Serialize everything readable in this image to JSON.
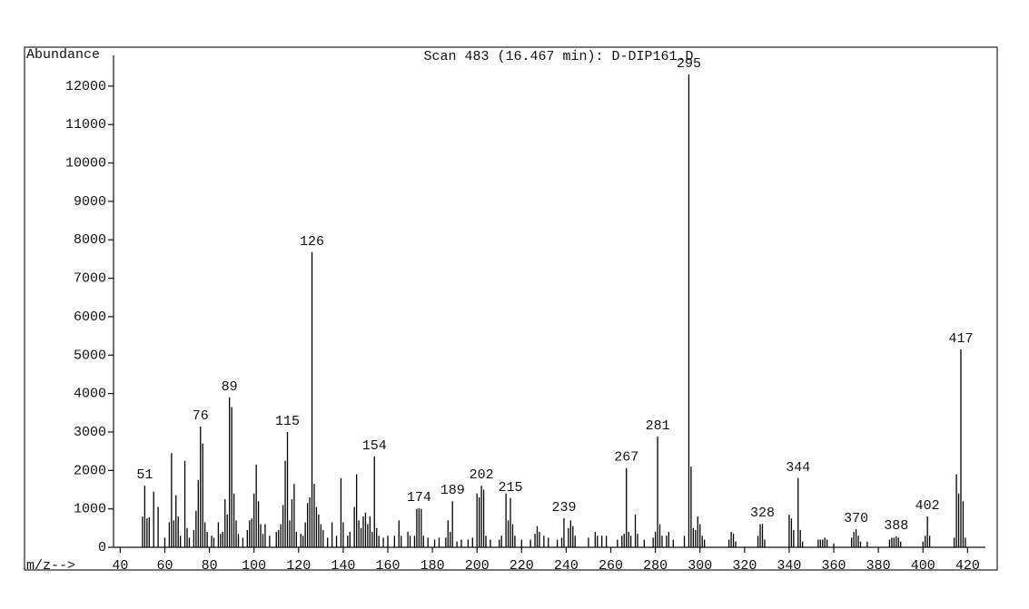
{
  "chart_data": {
    "type": "bar",
    "title": "Scan 483 (16.467 min): D-DIP161.D",
    "y_label": "Abundance",
    "x_label": "m/z-->",
    "color": "#000000",
    "xlim": [
      37,
      428
    ],
    "ylim": [
      0,
      12800
    ],
    "xticks": [
      40,
      60,
      80,
      100,
      120,
      140,
      160,
      180,
      200,
      220,
      240,
      260,
      280,
      300,
      320,
      340,
      360,
      380,
      400,
      420
    ],
    "yticks": [
      0,
      1000,
      2000,
      3000,
      4000,
      5000,
      6000,
      7000,
      8000,
      9000,
      10000,
      11000,
      12000
    ],
    "peak_labels": [
      51,
      76,
      89,
      115,
      126,
      154,
      174,
      189,
      202,
      215,
      239,
      267,
      281,
      295,
      328,
      344,
      370,
      388,
      402,
      417
    ],
    "x": [
      50,
      51,
      52,
      53,
      55,
      57,
      60,
      62,
      63,
      64,
      65,
      66,
      67,
      69,
      70,
      71,
      73,
      74,
      75,
      76,
      77,
      78,
      79,
      81,
      82,
      84,
      85,
      86,
      87,
      88,
      89,
      90,
      91,
      92,
      93,
      95,
      97,
      98,
      99,
      100,
      101,
      102,
      103,
      104,
      105,
      107,
      110,
      111,
      112,
      113,
      114,
      115,
      116,
      117,
      118,
      119,
      121,
      122,
      123,
      124,
      125,
      126,
      127,
      128,
      129,
      130,
      131,
      133,
      135,
      137,
      139,
      140,
      142,
      143,
      145,
      146,
      147,
      148,
      149,
      150,
      151,
      152,
      153,
      154,
      155,
      156,
      158,
      160,
      163,
      165,
      166,
      169,
      170,
      172,
      173,
      174,
      175,
      176,
      178,
      181,
      183,
      186,
      187,
      188,
      189,
      191,
      193,
      196,
      198,
      200,
      201,
      202,
      203,
      204,
      206,
      210,
      211,
      213,
      214,
      215,
      216,
      217,
      220,
      224,
      226,
      227,
      228,
      230,
      232,
      236,
      238,
      239,
      241,
      242,
      243,
      244,
      250,
      253,
      254,
      256,
      258,
      263,
      265,
      266,
      267,
      268,
      269,
      271,
      272,
      275,
      279,
      280,
      281,
      282,
      283,
      285,
      286,
      288,
      293,
      295,
      296,
      297,
      298,
      299,
      300,
      301,
      302,
      313,
      314,
      315,
      316,
      326,
      327,
      328,
      329,
      340,
      341,
      342,
      344,
      345,
      346,
      353,
      354,
      355,
      356,
      357,
      360,
      368,
      369,
      370,
      371,
      372,
      375,
      385,
      386,
      387,
      388,
      389,
      390,
      400,
      401,
      402,
      403,
      414,
      415,
      416,
      417,
      418,
      419
    ],
    "values": [
      800,
      1600,
      750,
      780,
      1450,
      1050,
      250,
      650,
      2450,
      700,
      1350,
      800,
      300,
      2250,
      500,
      250,
      450,
      950,
      1750,
      3140,
      2700,
      650,
      400,
      300,
      250,
      650,
      350,
      400,
      1250,
      850,
      3900,
      3650,
      1400,
      700,
      350,
      250,
      450,
      700,
      750,
      1400,
      2150,
      1200,
      600,
      350,
      600,
      300,
      400,
      450,
      600,
      1100,
      2250,
      3000,
      700,
      1250,
      1650,
      400,
      350,
      300,
      650,
      1150,
      1300,
      7680,
      1650,
      1050,
      850,
      600,
      450,
      250,
      650,
      300,
      1800,
      650,
      300,
      400,
      1050,
      1900,
      700,
      500,
      800,
      900,
      600,
      800,
      400,
      2360,
      500,
      300,
      250,
      300,
      300,
      700,
      300,
      400,
      300,
      300,
      1000,
      1020,
      1000,
      300,
      250,
      200,
      250,
      250,
      700,
      400,
      1200,
      150,
      200,
      200,
      250,
      1400,
      1300,
      1600,
      1500,
      300,
      200,
      200,
      300,
      1400,
      700,
      1280,
      600,
      300,
      200,
      200,
      350,
      550,
      400,
      300,
      250,
      200,
      250,
      760,
      500,
      700,
      550,
      300,
      250,
      400,
      300,
      300,
      300,
      200,
      300,
      350,
      2060,
      400,
      300,
      850,
      350,
      200,
      250,
      400,
      2880,
      600,
      300,
      300,
      400,
      200,
      300,
      12300,
      2100,
      500,
      450,
      800,
      600,
      300,
      200,
      200,
      400,
      350,
      150,
      300,
      600,
      610,
      200,
      850,
      750,
      450,
      1800,
      450,
      150,
      200,
      200,
      200,
      250,
      200,
      100,
      250,
      400,
      470,
      300,
      150,
      150,
      200,
      250,
      250,
      280,
      250,
      150,
      150,
      300,
      800,
      300,
      250,
      1900,
      1400,
      5150,
      1200,
      250
    ]
  }
}
